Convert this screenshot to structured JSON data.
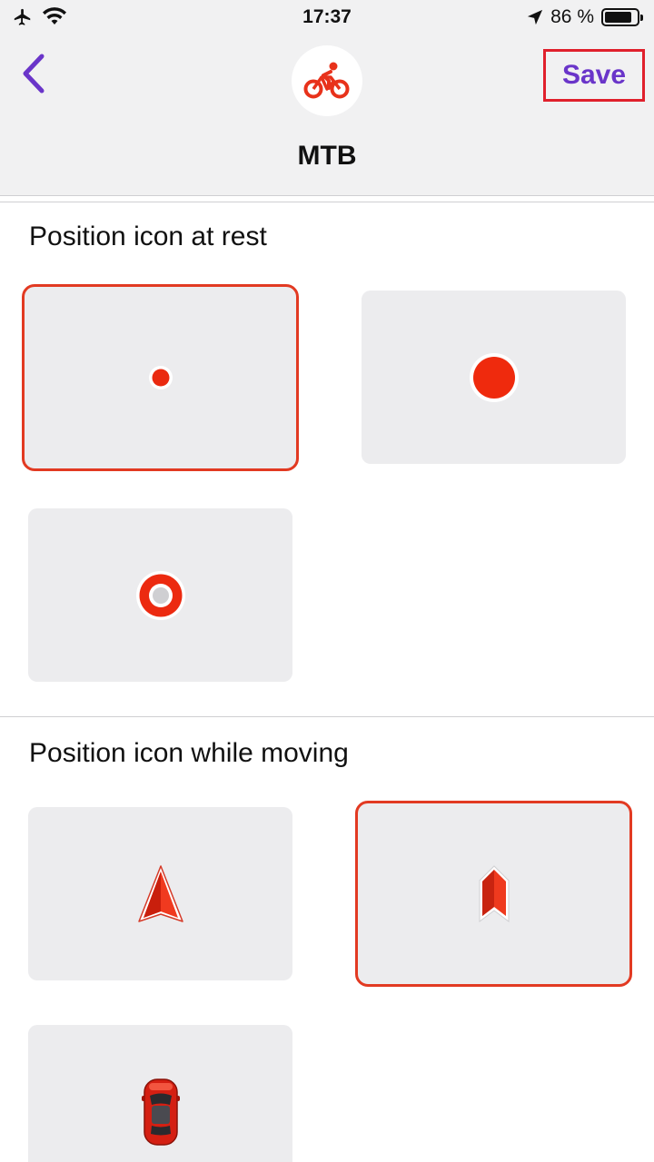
{
  "status_bar": {
    "time": "17:37",
    "battery_percent": "86 %",
    "battery_level": 0.86
  },
  "header": {
    "title": "MTB",
    "save_label": "Save",
    "profile_icon": "bicycle-icon",
    "accent_color": "#6a35c9",
    "icon_color": "#e8321b"
  },
  "sections": {
    "rest": {
      "title": "Position icon at rest",
      "options": [
        {
          "icon": "small-dot-icon",
          "selected": true
        },
        {
          "icon": "large-dot-icon",
          "selected": false
        },
        {
          "icon": "ring-dot-icon",
          "selected": false
        }
      ]
    },
    "moving": {
      "title": "Position icon while moving",
      "options": [
        {
          "icon": "navigation-arrow-icon",
          "selected": false
        },
        {
          "icon": "chevron-marker-icon",
          "selected": true
        },
        {
          "icon": "car-icon",
          "selected": false
        }
      ]
    }
  }
}
